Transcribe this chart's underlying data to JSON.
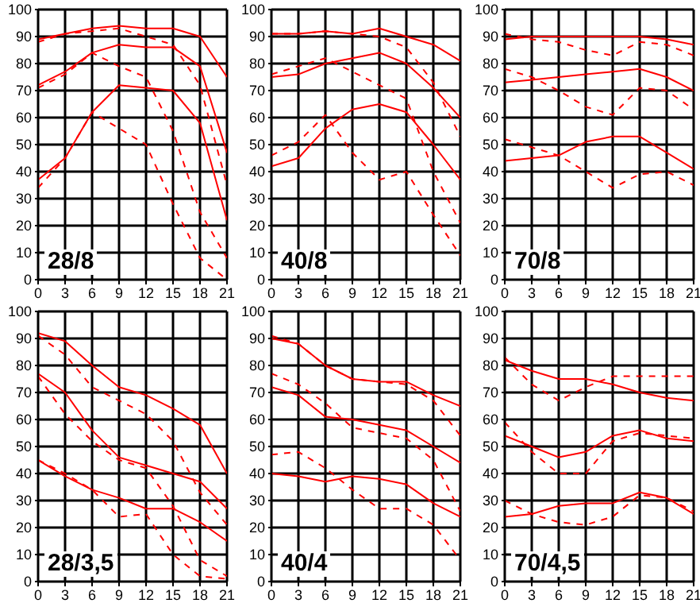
{
  "chart_data": [
    {
      "type": "line",
      "title": "28/8",
      "x": [
        0,
        3,
        6,
        9,
        12,
        15,
        18,
        21
      ],
      "xlim": [
        0,
        21
      ],
      "ylim": [
        0,
        100
      ],
      "xticks": [
        0,
        3,
        6,
        9,
        12,
        15,
        18,
        21
      ],
      "yticks": [
        0,
        10,
        20,
        30,
        40,
        50,
        60,
        70,
        80,
        90,
        100
      ],
      "grid": true,
      "series": [
        {
          "color": "#ff0000",
          "line_style": "solid",
          "values": [
            89,
            91,
            93,
            94,
            93,
            93,
            90,
            75
          ]
        },
        {
          "color": "#ff0000",
          "line_style": "dashed",
          "values": [
            88,
            91,
            92,
            93,
            90,
            87,
            72,
            35
          ]
        },
        {
          "color": "#ff0000",
          "line_style": "solid",
          "values": [
            72,
            77,
            84,
            87,
            86,
            86,
            79,
            47
          ]
        },
        {
          "color": "#ff0000",
          "line_style": "dashed",
          "values": [
            71,
            76,
            84,
            79,
            75,
            55,
            25,
            8
          ]
        },
        {
          "color": "#ff0000",
          "line_style": "solid",
          "values": [
            37,
            45,
            62,
            72,
            71,
            70,
            58,
            22
          ]
        },
        {
          "color": "#ff0000",
          "line_style": "dashed",
          "values": [
            34,
            45,
            62,
            56,
            50,
            28,
            8,
            0
          ]
        }
      ]
    },
    {
      "type": "line",
      "title": "40/8",
      "x": [
        0,
        3,
        6,
        9,
        12,
        15,
        18,
        21
      ],
      "xlim": [
        0,
        21
      ],
      "ylim": [
        0,
        100
      ],
      "xticks": [
        0,
        3,
        6,
        9,
        12,
        15,
        18,
        21
      ],
      "yticks": [
        0,
        10,
        20,
        30,
        40,
        50,
        60,
        70,
        80,
        90,
        100
      ],
      "grid": true,
      "series": [
        {
          "color": "#ff0000",
          "line_style": "solid",
          "values": [
            91,
            91,
            92,
            91,
            93,
            90,
            87,
            81
          ]
        },
        {
          "color": "#ff0000",
          "line_style": "dashed",
          "values": [
            91,
            91,
            92,
            91,
            90,
            86,
            73,
            53
          ]
        },
        {
          "color": "#ff0000",
          "line_style": "solid",
          "values": [
            75,
            76,
            80,
            82,
            84,
            80,
            71,
            60
          ]
        },
        {
          "color": "#ff0000",
          "line_style": "dashed",
          "values": [
            76,
            79,
            82,
            77,
            72,
            67,
            40,
            21
          ]
        },
        {
          "color": "#ff0000",
          "line_style": "solid",
          "values": [
            42,
            45,
            56,
            63,
            65,
            62,
            50,
            37
          ]
        },
        {
          "color": "#ff0000",
          "line_style": "dashed",
          "values": [
            46,
            51,
            61,
            47,
            37,
            40,
            24,
            9
          ]
        }
      ]
    },
    {
      "type": "line",
      "title": "70/8",
      "x": [
        0,
        3,
        6,
        9,
        12,
        15,
        18,
        21
      ],
      "xlim": [
        0,
        21
      ],
      "ylim": [
        0,
        100
      ],
      "xticks": [
        0,
        3,
        6,
        9,
        12,
        15,
        18,
        21
      ],
      "yticks": [
        0,
        10,
        20,
        30,
        40,
        50,
        60,
        70,
        80,
        90,
        100
      ],
      "grid": true,
      "series": [
        {
          "color": "#ff0000",
          "line_style": "solid",
          "values": [
            89,
            90,
            90,
            90,
            90,
            90,
            89,
            87
          ]
        },
        {
          "color": "#ff0000",
          "line_style": "dashed",
          "values": [
            91,
            89,
            88,
            85,
            83,
            88,
            87,
            83
          ]
        },
        {
          "color": "#ff0000",
          "line_style": "solid",
          "values": [
            73,
            74,
            75,
            76,
            77,
            78,
            75,
            70
          ]
        },
        {
          "color": "#ff0000",
          "line_style": "dashed",
          "values": [
            78,
            75,
            70,
            64,
            61,
            71,
            70,
            63
          ]
        },
        {
          "color": "#ff0000",
          "line_style": "solid",
          "values": [
            44,
            45,
            46,
            51,
            53,
            53,
            47,
            41
          ]
        },
        {
          "color": "#ff0000",
          "line_style": "dashed",
          "values": [
            52,
            49,
            46,
            40,
            34,
            39,
            40,
            35
          ]
        }
      ]
    },
    {
      "type": "line",
      "title": "28/3,5",
      "x": [
        0,
        3,
        6,
        9,
        12,
        15,
        18,
        21
      ],
      "xlim": [
        0,
        21
      ],
      "ylim": [
        0,
        100
      ],
      "xticks": [
        0,
        3,
        6,
        9,
        12,
        15,
        18,
        21
      ],
      "yticks": [
        0,
        10,
        20,
        30,
        40,
        50,
        60,
        70,
        80,
        90,
        100
      ],
      "grid": true,
      "series": [
        {
          "color": "#ff0000",
          "line_style": "solid",
          "values": [
            92,
            89,
            80,
            72,
            69,
            64,
            58,
            40
          ]
        },
        {
          "color": "#ff0000",
          "line_style": "dashed",
          "values": [
            91,
            84,
            72,
            67,
            62,
            52,
            33,
            21
          ]
        },
        {
          "color": "#ff0000",
          "line_style": "solid",
          "values": [
            77,
            70,
            56,
            46,
            43,
            40,
            37,
            27
          ]
        },
        {
          "color": "#ff0000",
          "line_style": "dashed",
          "values": [
            76,
            62,
            52,
            45,
            42,
            28,
            8,
            2
          ]
        },
        {
          "color": "#ff0000",
          "line_style": "solid",
          "values": [
            45,
            39,
            34,
            31,
            27,
            27,
            22,
            15
          ]
        },
        {
          "color": "#ff0000",
          "line_style": "dashed",
          "values": [
            45,
            40,
            34,
            24,
            25,
            10,
            2,
            1
          ]
        }
      ]
    },
    {
      "type": "line",
      "title": "40/4",
      "x": [
        0,
        3,
        6,
        9,
        12,
        15,
        18,
        21
      ],
      "xlim": [
        0,
        21
      ],
      "ylim": [
        0,
        100
      ],
      "xticks": [
        0,
        3,
        6,
        9,
        12,
        15,
        18,
        21
      ],
      "yticks": [
        0,
        10,
        20,
        30,
        40,
        50,
        60,
        70,
        80,
        90,
        100
      ],
      "grid": true,
      "series": [
        {
          "color": "#ff0000",
          "line_style": "solid",
          "values": [
            90,
            88,
            80,
            75,
            74,
            74,
            69,
            65
          ]
        },
        {
          "color": "#ff0000",
          "line_style": "dashed",
          "values": [
            91,
            88,
            80,
            75,
            74,
            73,
            67,
            54
          ]
        },
        {
          "color": "#ff0000",
          "line_style": "solid",
          "values": [
            72,
            69,
            61,
            60,
            58,
            56,
            50,
            44
          ]
        },
        {
          "color": "#ff0000",
          "line_style": "dashed",
          "values": [
            77,
            73,
            66,
            57,
            55,
            53,
            45,
            26
          ]
        },
        {
          "color": "#ff0000",
          "line_style": "solid",
          "values": [
            40,
            39,
            37,
            39,
            38,
            36,
            29,
            24
          ]
        },
        {
          "color": "#ff0000",
          "line_style": "dashed",
          "values": [
            47,
            48,
            42,
            34,
            27,
            27,
            21,
            8
          ]
        }
      ]
    },
    {
      "type": "line",
      "title": "70/4,5",
      "x": [
        0,
        3,
        6,
        9,
        12,
        15,
        18,
        21
      ],
      "xlim": [
        0,
        21
      ],
      "ylim": [
        0,
        100
      ],
      "xticks": [
        0,
        3,
        6,
        9,
        12,
        15,
        18,
        21
      ],
      "yticks": [
        0,
        10,
        20,
        30,
        40,
        50,
        60,
        70,
        80,
        90,
        100
      ],
      "grid": true,
      "series": [
        {
          "color": "#ff0000",
          "line_style": "solid",
          "values": [
            82,
            78,
            75,
            75,
            73,
            70,
            68,
            67
          ]
        },
        {
          "color": "#ff0000",
          "line_style": "dashed",
          "values": [
            83,
            73,
            67,
            72,
            76,
            76,
            76,
            76
          ]
        },
        {
          "color": "#ff0000",
          "line_style": "solid",
          "values": [
            54,
            50,
            46,
            48,
            54,
            56,
            53,
            52
          ]
        },
        {
          "color": "#ff0000",
          "line_style": "dashed",
          "values": [
            59,
            48,
            40,
            40,
            52,
            55,
            54,
            53
          ]
        },
        {
          "color": "#ff0000",
          "line_style": "solid",
          "values": [
            24,
            25,
            28,
            29,
            29,
            33,
            31,
            25
          ]
        },
        {
          "color": "#ff0000",
          "line_style": "dashed",
          "values": [
            30,
            25,
            22,
            21,
            24,
            32,
            31,
            26
          ]
        }
      ]
    }
  ]
}
